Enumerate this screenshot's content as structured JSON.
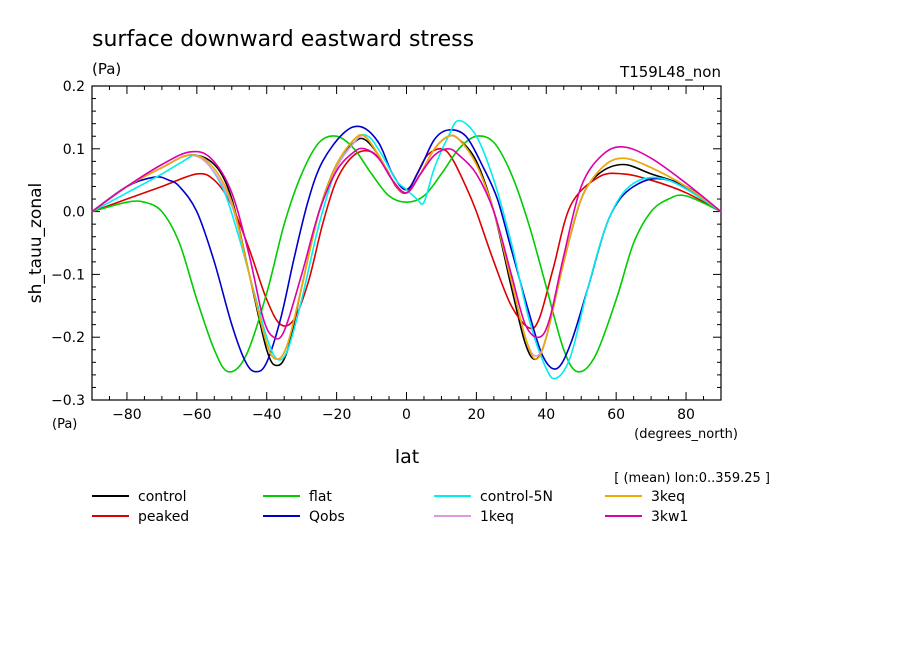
{
  "chart_data": {
    "type": "line",
    "title": "surface downward eastward stress",
    "units": "(Pa)",
    "experiment": "T159L48_non",
    "xlabel": "lat",
    "xunits": "(degrees_north)",
    "ylabel": "sh_tauu_zonal",
    "yunits": "(Pa)",
    "mean_note": "[ (mean) lon:0..359.25 ]",
    "xlim": [
      -90,
      90
    ],
    "ylim": [
      -0.3,
      0.2
    ],
    "xticks": [
      -80,
      -60,
      -40,
      -20,
      0,
      20,
      40,
      60,
      80
    ],
    "xtick_labels": [
      "−80",
      "−60",
      "−40",
      "−20",
      "0",
      "20",
      "40",
      "60",
      "80"
    ],
    "yticks": [
      -0.3,
      -0.2,
      -0.1,
      0.0,
      0.1,
      0.2
    ],
    "ytick_labels": [
      "−0.3",
      "−0.2",
      "−0.1",
      "0.0",
      "0.1",
      "0.2"
    ],
    "grid": false,
    "legend_position": "bottom",
    "series": [
      {
        "name": "control",
        "color": "#000000",
        "x": [
          -90,
          -80,
          -70,
          -62,
          -55,
          -50,
          -45,
          -40,
          -37,
          -34,
          -30,
          -25,
          -20,
          -15,
          -12,
          -8,
          -4,
          0,
          4,
          8,
          12,
          15,
          20,
          25,
          30,
          34,
          37,
          40,
          45,
          50,
          55,
          62,
          70,
          80,
          90
        ],
        "y": [
          0,
          0.04,
          0.07,
          0.09,
          0.075,
          0.02,
          -0.1,
          -0.22,
          -0.245,
          -0.22,
          -0.12,
          0,
          0.075,
          0.11,
          0.115,
          0.09,
          0.05,
          0.03,
          0.06,
          0.1,
          0.12,
          0.115,
          0.08,
          0,
          -0.12,
          -0.21,
          -0.235,
          -0.2,
          -0.08,
          0.02,
          0.06,
          0.075,
          0.06,
          0.04,
          0
        ]
      },
      {
        "name": "peaked",
        "color": "#dd0000",
        "x": [
          -90,
          -80,
          -70,
          -60,
          -55,
          -50,
          -45,
          -40,
          -36,
          -32,
          -28,
          -24,
          -20,
          -15,
          -10,
          -6,
          -3,
          0,
          3,
          6,
          10,
          13,
          17,
          20,
          25,
          30,
          35,
          38,
          42,
          47,
          55,
          62,
          70,
          80,
          90
        ],
        "y": [
          0,
          0.02,
          0.04,
          0.06,
          0.05,
          0.01,
          -0.06,
          -0.14,
          -0.18,
          -0.17,
          -0.11,
          -0.02,
          0.05,
          0.09,
          0.095,
          0.07,
          0.04,
          0.03,
          0.06,
          0.09,
          0.1,
          0.085,
          0.04,
          0,
          -0.08,
          -0.15,
          -0.185,
          -0.17,
          -0.09,
          0.01,
          0.055,
          0.06,
          0.05,
          0.03,
          0
        ]
      },
      {
        "name": "flat",
        "color": "#00cc00",
        "x": [
          -90,
          -80,
          -75,
          -70,
          -65,
          -60,
          -55,
          -51,
          -46,
          -40,
          -35,
          -30,
          -25,
          -20,
          -15,
          -10,
          -5,
          0,
          5,
          10,
          15,
          20,
          25,
          30,
          35,
          40,
          45,
          49,
          54,
          60,
          65,
          70,
          75,
          80,
          90
        ],
        "y": [
          0,
          0.015,
          0.015,
          0,
          -0.05,
          -0.14,
          -0.22,
          -0.255,
          -0.23,
          -0.13,
          -0.02,
          0.06,
          0.11,
          0.12,
          0.1,
          0.06,
          0.025,
          0.015,
          0.025,
          0.06,
          0.1,
          0.12,
          0.11,
          0.06,
          -0.02,
          -0.12,
          -0.22,
          -0.255,
          -0.23,
          -0.14,
          -0.05,
          0,
          0.02,
          0.025,
          0
        ]
      },
      {
        "name": "Qobs",
        "color": "#0000cc",
        "x": [
          -90,
          -80,
          -72,
          -68,
          -65,
          -60,
          -55,
          -50,
          -46,
          -43,
          -40,
          -36,
          -32,
          -28,
          -24,
          -18,
          -13,
          -8,
          -4,
          0,
          4,
          8,
          12,
          17,
          22,
          26,
          30,
          35,
          39,
          43,
          47,
          52,
          58,
          65,
          75,
          90
        ],
        "y": [
          0,
          0.04,
          0.055,
          0.05,
          0.04,
          0,
          -0.08,
          -0.18,
          -0.24,
          -0.255,
          -0.24,
          -0.17,
          -0.07,
          0.02,
          0.08,
          0.125,
          0.135,
          0.11,
          0.06,
          0.035,
          0.07,
          0.115,
          0.13,
          0.12,
          0.07,
          0.02,
          -0.06,
          -0.16,
          -0.23,
          -0.25,
          -0.21,
          -0.12,
          -0.01,
          0.04,
          0.05,
          0
        ]
      },
      {
        "name": "control-5N",
        "color": "#00eeee",
        "x": [
          -90,
          -80,
          -70,
          -64,
          -60,
          -56,
          -52,
          -48,
          -44,
          -40,
          -37,
          -34,
          -30,
          -25,
          -20,
          -15,
          -11,
          -7,
          -3,
          0,
          3,
          5,
          8,
          12,
          15,
          20,
          25,
          30,
          35,
          40,
          43,
          47,
          52,
          58,
          65,
          75,
          90
        ],
        "y": [
          0,
          0.03,
          0.06,
          0.08,
          0.09,
          0.07,
          0.03,
          -0.04,
          -0.12,
          -0.2,
          -0.235,
          -0.22,
          -0.14,
          -0.02,
          0.07,
          0.115,
          0.12,
          0.09,
          0.05,
          0.035,
          0.02,
          0.015,
          0.07,
          0.12,
          0.145,
          0.12,
          0.05,
          -0.05,
          -0.17,
          -0.25,
          -0.265,
          -0.23,
          -0.12,
          -0.01,
          0.045,
          0.05,
          0
        ]
      },
      {
        "name": "1keq",
        "color": "#dd99dd",
        "x": [
          -90,
          -80,
          -70,
          -62,
          -56,
          -50,
          -45,
          -40,
          -37,
          -34,
          -30,
          -25,
          -20,
          -15,
          -12,
          -8,
          -4,
          0,
          4,
          8,
          12,
          15,
          20,
          25,
          30,
          34,
          37,
          40,
          45,
          50,
          56,
          62,
          70,
          80,
          90
        ],
        "y": [
          0,
          0.04,
          0.07,
          0.09,
          0.07,
          0.01,
          -0.1,
          -0.21,
          -0.235,
          -0.21,
          -0.12,
          0,
          0.07,
          0.11,
          0.12,
          0.09,
          0.05,
          0.03,
          0.06,
          0.1,
          0.12,
          0.115,
          0.075,
          0,
          -0.11,
          -0.2,
          -0.23,
          -0.2,
          -0.08,
          0.02,
          0.07,
          0.085,
          0.07,
          0.04,
          0
        ]
      },
      {
        "name": "3keq",
        "color": "#eeaa00",
        "x": [
          -90,
          -80,
          -70,
          -62,
          -56,
          -50,
          -45,
          -40,
          -37,
          -34,
          -30,
          -25,
          -20,
          -15,
          -12,
          -8,
          -4,
          0,
          4,
          8,
          12,
          15,
          20,
          25,
          30,
          34,
          37,
          40,
          45,
          50,
          56,
          62,
          70,
          80,
          90
        ],
        "y": [
          0,
          0.04,
          0.07,
          0.09,
          0.075,
          0.015,
          -0.1,
          -0.21,
          -0.235,
          -0.21,
          -0.12,
          0,
          0.075,
          0.115,
          0.12,
          0.09,
          0.05,
          0.03,
          0.06,
          0.1,
          0.12,
          0.115,
          0.075,
          0,
          -0.11,
          -0.2,
          -0.235,
          -0.2,
          -0.08,
          0.02,
          0.07,
          0.085,
          0.07,
          0.04,
          0
        ]
      },
      {
        "name": "3kw1",
        "color": "#dd00aa",
        "x": [
          -90,
          -80,
          -70,
          -62,
          -56,
          -50,
          -45,
          -41,
          -38,
          -35,
          -30,
          -25,
          -20,
          -15,
          -12,
          -8,
          -4,
          0,
          4,
          8,
          12,
          15,
          20,
          25,
          30,
          34,
          38,
          41,
          45,
          50,
          56,
          62,
          70,
          80,
          90
        ],
        "y": [
          0,
          0.04,
          0.075,
          0.095,
          0.085,
          0.03,
          -0.07,
          -0.17,
          -0.2,
          -0.19,
          -0.1,
          0,
          0.065,
          0.095,
          0.1,
          0.085,
          0.05,
          0.03,
          0.06,
          0.09,
          0.1,
          0.09,
          0.06,
          0,
          -0.1,
          -0.18,
          -0.2,
          -0.17,
          -0.07,
          0.04,
          0.09,
          0.103,
          0.085,
          0.045,
          0
        ]
      }
    ]
  }
}
